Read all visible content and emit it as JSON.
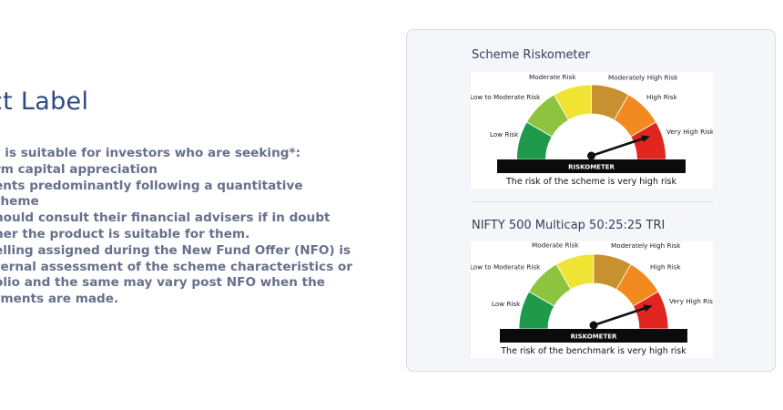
{
  "product_label": {
    "title": "ct Label",
    "lines": [
      "t is suitable for investors who are seeking*:",
      "rm capital appreciation",
      "ents predominantly following a quantitative",
      "theme",
      "hould consult their financial advisers if in doubt",
      "her the product is suitable for them.",
      "elling assigned during the New Fund Offer (NFO) is",
      "ternal assessment of the scheme characteristics or",
      "olio and the same may vary post NFO when the",
      "tments are made."
    ]
  },
  "riskometers": [
    {
      "heading": "Scheme Riskometer",
      "labels": {
        "low": "Low Risk",
        "low_moderate": "Low to Moderate Risk",
        "moderate": "Moderate Risk",
        "moderately_high": "Moderately High Risk",
        "high": "High Risk",
        "very_high": "Very High Risk"
      },
      "bar_label": "RISKOMETER",
      "caption": "The risk of the scheme is very high risk",
      "level": "Very High Risk"
    },
    {
      "heading": "NIFTY 500 Multicap 50:25:25 TRI",
      "labels": {
        "low": "Low Risk",
        "low_moderate": "Low to Moderate Risk",
        "moderate": "Moderate Risk",
        "moderately_high": "Moderately High Risk",
        "high": "High Risk",
        "very_high": "Very High Risk"
      },
      "bar_label": "RISKOMETER",
      "caption": "The risk of the benchmark is very high risk",
      "level": "Very High Risk"
    }
  ],
  "colors": {
    "title": "#2c4a86",
    "body_text": "#67708c",
    "segments": [
      "#1f9a4b",
      "#8cc43f",
      "#f1e334",
      "#c8912f",
      "#f38a1f",
      "#e0261f"
    ],
    "needle": "#111111"
  }
}
